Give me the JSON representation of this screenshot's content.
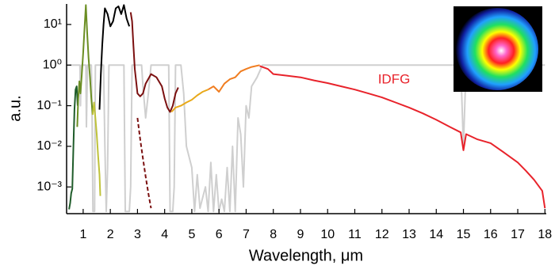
{
  "chart_data": {
    "type": "line",
    "xlabel": "Wavelength, μm",
    "ylabel": "a.u.",
    "annotation": "IDFG",
    "xlim": [
      0.39,
      18.05
    ],
    "ylim": [
      0.00022,
      32
    ],
    "ylog": true,
    "xticks": [
      1,
      2,
      3,
      4,
      5,
      6,
      7,
      8,
      9,
      10,
      11,
      12,
      13,
      14,
      15,
      16,
      17,
      18
    ],
    "yticks": [
      {
        "value": 0.001,
        "label": "10⁻³"
      },
      {
        "value": 0.01,
        "label": "10⁻²"
      },
      {
        "value": 0.1,
        "label": "10⁻¹"
      },
      {
        "value": 1,
        "label": "10⁰"
      },
      {
        "value": 10,
        "label": "10¹"
      }
    ],
    "series": [
      {
        "color": "#cfcfcf",
        "x": [
          0.4,
          0.88,
          0.9,
          0.92,
          0.94,
          1.1,
          1.12,
          1.14,
          1.16,
          1.3,
          1.33,
          1.36,
          1.42,
          1.45,
          1.75,
          1.8,
          1.85,
          1.9,
          1.95,
          2.5,
          2.55,
          2.6,
          2.65,
          2.7,
          2.75,
          2.8,
          3.15,
          3.2,
          3.3,
          3.4,
          3.5,
          4.15,
          4.2,
          4.25,
          4.3,
          4.35,
          4.4,
          4.6,
          4.7,
          4.8,
          5.0,
          5.1,
          5.2,
          5.3,
          5.5,
          5.6,
          5.7,
          5.8,
          5.9,
          6.0,
          6.1,
          6.2,
          6.3,
          6.4,
          6.5,
          6.6,
          6.7,
          6.8,
          6.9,
          7.0,
          7.1,
          7.2,
          7.4,
          7.6,
          8.0,
          14.9,
          14.95,
          15.0,
          15.1,
          18.0
        ],
        "values": [
          1,
          1,
          0.1,
          0.5,
          1,
          1,
          0.03,
          0.2,
          1,
          1,
          0.05,
          0.00025,
          0.00025,
          1,
          1,
          0.01,
          0.00025,
          0.003,
          1,
          1,
          0.00025,
          0.00025,
          0.00025,
          0.00025,
          0.001,
          1,
          1,
          0.3,
          0.05,
          0.2,
          1,
          1,
          0.00025,
          0.00025,
          0.00025,
          0.001,
          1,
          1,
          0.2,
          0.01,
          0.003,
          0.00025,
          0.002,
          0.0003,
          0.001,
          0.00025,
          0.004,
          0.00025,
          0.002,
          0.00025,
          0.0005,
          0.00025,
          0.003,
          0.00025,
          0.01,
          0.00025,
          0.05,
          0.02,
          0.001,
          0.1,
          0.05,
          0.3,
          0.5,
          1,
          1,
          1,
          0.1,
          0.01,
          1,
          1
        ]
      },
      {
        "color": "#1f5c2a",
        "x": [
          0.48,
          0.52,
          0.56,
          0.6,
          0.64,
          0.68,
          0.72,
          0.76,
          0.8
        ],
        "values": [
          0.00028,
          0.0004,
          0.0007,
          0.0009,
          0.01,
          0.08,
          0.25,
          0.3,
          0.1
        ]
      },
      {
        "color": "#6b8e23",
        "x": [
          0.78,
          0.82,
          0.86,
          0.9,
          0.95,
          1.0,
          1.05,
          1.1,
          1.15,
          1.2,
          1.25,
          1.3,
          1.35
        ],
        "values": [
          0.03,
          0.15,
          0.4,
          0.2,
          0.6,
          2,
          8,
          30,
          6,
          1.5,
          0.5,
          0.15,
          0.06
        ]
      },
      {
        "color": "#bfc23a",
        "x": [
          1.35,
          1.4,
          1.45,
          1.5,
          1.55,
          1.6,
          1.63
        ],
        "values": [
          0.06,
          0.12,
          0.05,
          0.02,
          0.006,
          0.002,
          0.0006
        ]
      },
      {
        "color": "#000000",
        "x": [
          1.6,
          1.65,
          1.7,
          1.75,
          1.8,
          1.9,
          2.0,
          2.1,
          2.2,
          2.3,
          2.4,
          2.5,
          2.6,
          2.7
        ],
        "values": [
          0.08,
          0.6,
          3,
          10,
          25,
          18,
          9,
          12,
          25,
          28,
          18,
          30,
          14,
          9
        ]
      },
      {
        "color": "#7b1010",
        "x": [
          2.75,
          2.8,
          2.85,
          2.9,
          3.0,
          3.1,
          3.2,
          3.3,
          3.5,
          3.7,
          3.9,
          4.0,
          4.1,
          4.2,
          4.3,
          4.4,
          4.5
        ],
        "values": [
          20,
          12,
          3,
          0.8,
          0.2,
          0.17,
          0.2,
          0.35,
          0.6,
          0.5,
          0.3,
          0.15,
          0.09,
          0.07,
          0.1,
          0.2,
          0.28
        ]
      },
      {
        "color": "#7b1010",
        "dash": true,
        "x": [
          3.0,
          3.1,
          3.2,
          3.3,
          3.4,
          3.5
        ],
        "values": [
          0.05,
          0.015,
          0.005,
          0.0018,
          0.0007,
          0.0003
        ]
      },
      {
        "color": "#e8a91a",
        "x": [
          4.25,
          4.4,
          4.6,
          4.8,
          5.0,
          5.2,
          5.4,
          5.6
        ],
        "values": [
          0.07,
          0.09,
          0.1,
          0.12,
          0.14,
          0.18,
          0.22,
          0.25
        ]
      },
      {
        "color": "#f07d20",
        "x": [
          5.6,
          5.8,
          6.0,
          6.2,
          6.4,
          6.6,
          6.8,
          7.0,
          7.2,
          7.5
        ],
        "values": [
          0.25,
          0.3,
          0.22,
          0.35,
          0.45,
          0.5,
          0.7,
          0.8,
          0.9,
          1
        ]
      },
      {
        "color": "#e8232b",
        "name": "IDFG",
        "x": [
          7.5,
          7.8,
          8.0,
          8.5,
          9.0,
          9.5,
          10,
          10.5,
          11,
          11.5,
          12,
          12.5,
          13,
          13.5,
          14,
          14.5,
          14.9,
          15.0,
          15.1,
          15.5,
          16,
          16.5,
          17,
          17.3,
          17.6,
          17.9,
          18
        ],
        "values": [
          0.95,
          0.8,
          0.6,
          0.55,
          0.5,
          0.42,
          0.36,
          0.3,
          0.25,
          0.2,
          0.16,
          0.12,
          0.09,
          0.065,
          0.045,
          0.03,
          0.022,
          0.008,
          0.02,
          0.015,
          0.012,
          0.007,
          0.004,
          0.0025,
          0.0015,
          0.0008,
          0.0003
        ]
      }
    ]
  }
}
